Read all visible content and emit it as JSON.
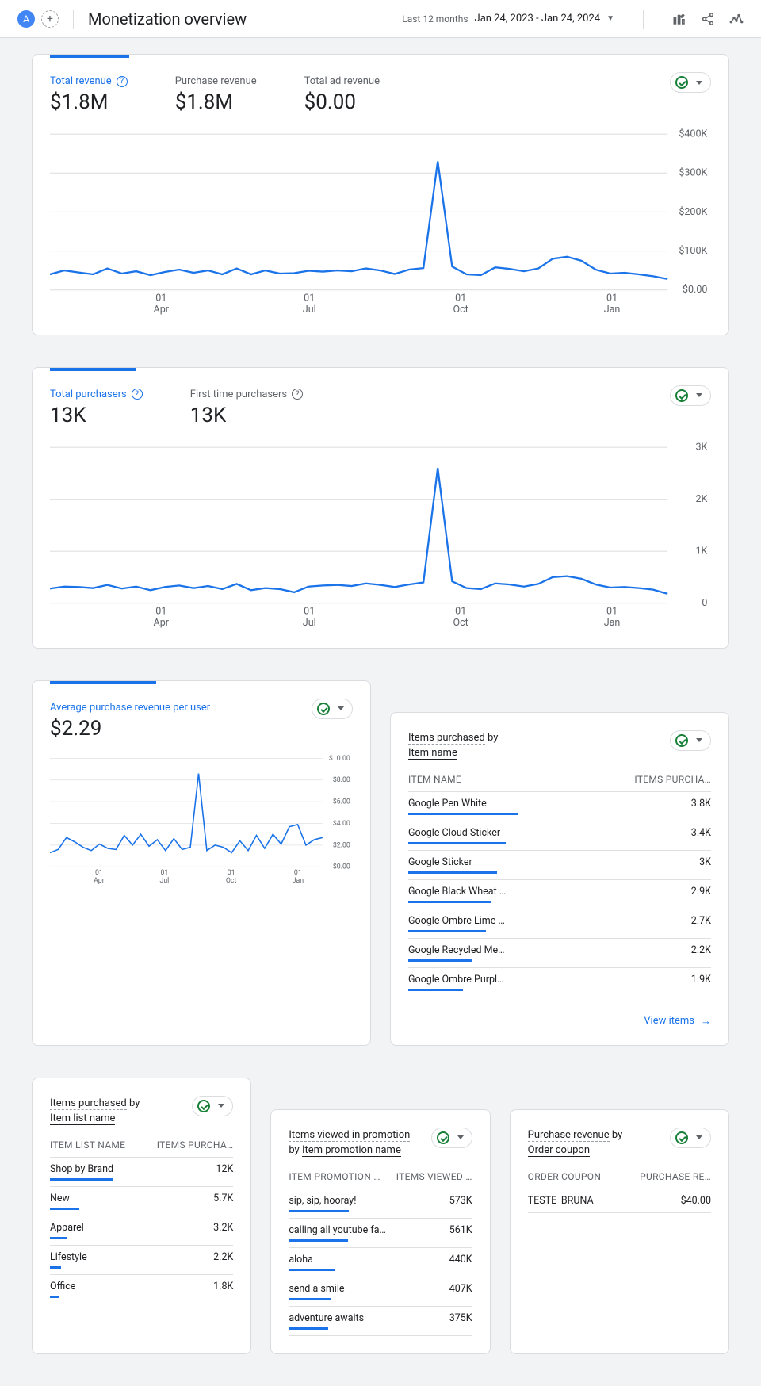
{
  "header": {
    "avatar_letter": "A",
    "title": "Monetization overview",
    "range_label": "Last 12 months",
    "date_range": "Jan 24, 2023 - Jan 24, 2024"
  },
  "revenue_card": {
    "tab_width_pct": 12,
    "stats": [
      {
        "label": "Total revenue",
        "value": "$1.8M",
        "active": true,
        "help": true
      },
      {
        "label": "Purchase revenue",
        "value": "$1.8M",
        "active": false,
        "help": false
      },
      {
        "label": "Total ad revenue",
        "value": "$0.00",
        "active": false,
        "help": false
      }
    ],
    "chart": {
      "type": "line",
      "line_color": "#1a73e8",
      "grid_color": "#e0e0e0",
      "ylim": [
        0,
        400000
      ],
      "y_ticks": [
        {
          "v": 0,
          "label": "$0.00"
        },
        {
          "v": 100000,
          "label": "$100K"
        },
        {
          "v": 200000,
          "label": "$200K"
        },
        {
          "v": 300000,
          "label": "$300K"
        },
        {
          "v": 400000,
          "label": "$400K"
        }
      ],
      "x_ticks": [
        {
          "frac": 0.18,
          "top": "01",
          "bot": "Apr"
        },
        {
          "frac": 0.42,
          "top": "01",
          "bot": "Jul"
        },
        {
          "frac": 0.665,
          "top": "01",
          "bot": "Oct"
        },
        {
          "frac": 0.91,
          "top": "01",
          "bot": "Jan"
        }
      ],
      "series": [
        40000,
        50000,
        45000,
        40000,
        55000,
        42000,
        48000,
        38000,
        46000,
        52000,
        44000,
        50000,
        40000,
        55000,
        40000,
        50000,
        42000,
        43000,
        49000,
        47000,
        50000,
        48000,
        55000,
        50000,
        41000,
        52000,
        56000,
        330000,
        60000,
        40000,
        38000,
        58000,
        54000,
        48000,
        55000,
        80000,
        85000,
        75000,
        52000,
        42000,
        44000,
        40000,
        35000,
        28000
      ]
    }
  },
  "purchasers_card": {
    "tab_width_pct": 13,
    "stats": [
      {
        "label": "Total purchasers",
        "value": "13K",
        "active": true,
        "help": true
      },
      {
        "label": "First time purchasers",
        "value": "13K",
        "active": false,
        "help": true
      }
    ],
    "chart": {
      "type": "line",
      "line_color": "#1a73e8",
      "grid_color": "#e0e0e0",
      "ylim": [
        0,
        3000
      ],
      "y_ticks": [
        {
          "v": 0,
          "label": "0"
        },
        {
          "v": 1000,
          "label": "1K"
        },
        {
          "v": 2000,
          "label": "2K"
        },
        {
          "v": 3000,
          "label": "3K"
        }
      ],
      "x_ticks": [
        {
          "frac": 0.18,
          "top": "01",
          "bot": "Apr"
        },
        {
          "frac": 0.42,
          "top": "01",
          "bot": "Jul"
        },
        {
          "frac": 0.665,
          "top": "01",
          "bot": "Oct"
        },
        {
          "frac": 0.91,
          "top": "01",
          "bot": "Jan"
        }
      ],
      "series": [
        280,
        320,
        310,
        290,
        350,
        280,
        320,
        250,
        310,
        340,
        290,
        330,
        270,
        370,
        250,
        290,
        270,
        210,
        320,
        340,
        350,
        330,
        380,
        350,
        310,
        360,
        400,
        2600,
        420,
        290,
        270,
        380,
        360,
        320,
        370,
        500,
        520,
        470,
        360,
        300,
        310,
        290,
        260,
        180
      ]
    }
  },
  "arpu_card": {
    "tab_width_pct": 35,
    "label": "Average purchase revenue per user",
    "value": "$2.29",
    "chart": {
      "type": "line",
      "line_color": "#1a73e8",
      "grid_color": "#e0e0e0",
      "ylim": [
        0,
        10
      ],
      "y_ticks": [
        {
          "v": 0,
          "label": "$0.00"
        },
        {
          "v": 2,
          "label": "$2.00"
        },
        {
          "v": 4,
          "label": "$4.00"
        },
        {
          "v": 6,
          "label": "$6.00"
        },
        {
          "v": 8,
          "label": "$8.00"
        },
        {
          "v": 10,
          "label": "$10.00"
        }
      ],
      "x_ticks": [
        {
          "frac": 0.18,
          "top": "01",
          "bot": "Apr"
        },
        {
          "frac": 0.42,
          "top": "01",
          "bot": "Jul"
        },
        {
          "frac": 0.665,
          "top": "01",
          "bot": "Oct"
        },
        {
          "frac": 0.91,
          "top": "01",
          "bot": "Jan"
        }
      ],
      "series": [
        1.3,
        1.6,
        2.7,
        2.3,
        1.8,
        1.5,
        2.1,
        1.7,
        1.6,
        2.9,
        2.0,
        3.0,
        1.9,
        2.5,
        1.5,
        2.6,
        1.6,
        1.8,
        8.6,
        1.5,
        2.0,
        1.8,
        1.3,
        2.4,
        1.5,
        2.9,
        1.7,
        3.0,
        2.1,
        3.7,
        3.9,
        2.0,
        2.5,
        2.7
      ]
    }
  },
  "items_card": {
    "title_l1": "Items purchased",
    "title_l2_pre": "by",
    "title_l2_link": "Item name",
    "col1": "ITEM NAME",
    "col2": "ITEMS PURCHA…",
    "max": 3800,
    "rows": [
      {
        "name": "Google Pen White",
        "val": "3.8K",
        "num": 3800
      },
      {
        "name": "Google Cloud Sticker",
        "val": "3.4K",
        "num": 3400
      },
      {
        "name": "Google Sticker",
        "val": "3K",
        "num": 3000
      },
      {
        "name": "Google Black Wheat …",
        "val": "2.9K",
        "num": 2900
      },
      {
        "name": "Google Ombre Lime …",
        "val": "2.7K",
        "num": 2700
      },
      {
        "name": "Google Recycled Me…",
        "val": "2.2K",
        "num": 2200
      },
      {
        "name": "Google Ombre Purpl…",
        "val": "1.9K",
        "num": 1900
      }
    ],
    "view_link": "View items"
  },
  "list_card": {
    "title_l1": "Items purchased",
    "title_l2_pre": "by",
    "title_l2_link": "Item list name",
    "col1": "ITEM LIST NAME",
    "col2": "ITEMS PURCHA…",
    "max": 12000,
    "rows": [
      {
        "name": "Shop by Brand",
        "val": "12K",
        "num": 12000
      },
      {
        "name": "New",
        "val": "5.7K",
        "num": 5700
      },
      {
        "name": "Apparel",
        "val": "3.2K",
        "num": 3200
      },
      {
        "name": "Lifestyle",
        "val": "2.2K",
        "num": 2200
      },
      {
        "name": "Office",
        "val": "1.8K",
        "num": 1800
      }
    ]
  },
  "promo_card": {
    "title_l1": "Items viewed in promotion",
    "title_l2_pre": "by",
    "title_l2_link": "Item promotion name",
    "col1": "ITEM PROMOTION …",
    "col2": "ITEMS VIEWED …",
    "max": 573000,
    "rows": [
      {
        "name": "sip, sip, hooray!",
        "val": "573K",
        "num": 573000
      },
      {
        "name": "calling all youtube fa…",
        "val": "561K",
        "num": 561000
      },
      {
        "name": "aloha",
        "val": "440K",
        "num": 440000
      },
      {
        "name": "send a smile",
        "val": "407K",
        "num": 407000
      },
      {
        "name": "adventure awaits",
        "val": "375K",
        "num": 375000
      }
    ]
  },
  "coupon_card": {
    "title_l1": "Purchase revenue",
    "title_l2_pre": "by",
    "title_l2_link": "Order coupon",
    "col1": "ORDER COUPON",
    "col2": "PURCHASE RE…",
    "max": 40,
    "rows": [
      {
        "name": "TESTE_BRUNA",
        "val": "$40.00",
        "num": 40
      }
    ]
  }
}
